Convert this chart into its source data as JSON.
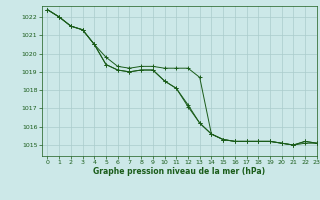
{
  "title": "Graphe pression niveau de la mer (hPa)",
  "bg_color": "#cce8e8",
  "grid_color": "#aacccc",
  "line_color": "#1a5c1a",
  "xlim": [
    -0.5,
    23
  ],
  "ylim": [
    1014.4,
    1022.6
  ],
  "yticks": [
    1015,
    1016,
    1017,
    1018,
    1019,
    1020,
    1021,
    1022
  ],
  "xticks": [
    0,
    1,
    2,
    3,
    4,
    5,
    6,
    7,
    8,
    9,
    10,
    11,
    12,
    13,
    14,
    15,
    16,
    17,
    18,
    19,
    20,
    21,
    22,
    23
  ],
  "series": [
    [
      1022.4,
      1022.0,
      1021.5,
      1021.3,
      1020.5,
      1019.8,
      1019.3,
      1019.2,
      1019.3,
      1019.3,
      1019.2,
      1019.2,
      1019.2,
      1018.7,
      1015.6,
      1015.3,
      1015.2,
      1015.2,
      1015.2,
      1015.2,
      1015.1,
      1015.0,
      1015.1,
      1015.1
    ],
    [
      1022.4,
      1022.0,
      1021.5,
      1021.3,
      1020.5,
      1019.4,
      1019.1,
      1019.0,
      1019.1,
      1019.1,
      1018.5,
      1018.1,
      1017.2,
      1016.2,
      1015.6,
      1015.3,
      1015.2,
      1015.2,
      1015.2,
      1015.2,
      1015.1,
      1015.0,
      1015.2,
      1015.1
    ],
    [
      1022.4,
      1022.0,
      1021.5,
      1021.3,
      1020.5,
      1019.4,
      1019.1,
      1019.0,
      1019.1,
      1019.1,
      1018.5,
      1018.1,
      1017.1,
      1016.2,
      1015.6,
      1015.3,
      1015.2,
      1015.2,
      1015.2,
      1015.2,
      1015.1,
      1015.0,
      1015.2,
      1015.1
    ]
  ]
}
